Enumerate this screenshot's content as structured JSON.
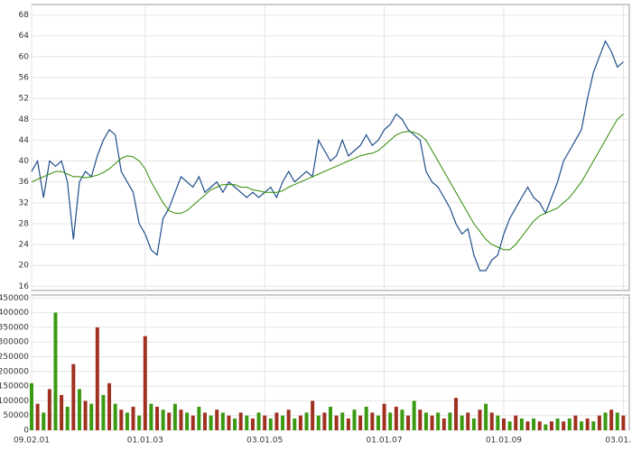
{
  "chart_data": [
    {
      "type": "line",
      "xlim": [
        2001.1,
        2011.1
      ],
      "ylim": [
        15.2,
        70
      ],
      "yticks": [
        16,
        20,
        24,
        28,
        32,
        36,
        40,
        44,
        48,
        52,
        56,
        60,
        64,
        68
      ],
      "grid": true,
      "x": [
        2001.1,
        2001.2,
        2001.3,
        2001.4,
        2001.5,
        2001.6,
        2001.7,
        2001.8,
        2001.9,
        2002.0,
        2002.1,
        2002.2,
        2002.3,
        2002.4,
        2002.5,
        2002.6,
        2002.7,
        2002.8,
        2002.9,
        2003.0,
        2003.1,
        2003.2,
        2003.3,
        2003.4,
        2003.5,
        2003.6,
        2003.7,
        2003.8,
        2003.9,
        2004.0,
        2004.1,
        2004.2,
        2004.3,
        2004.4,
        2004.5,
        2004.6,
        2004.7,
        2004.8,
        2004.9,
        2005.0,
        2005.1,
        2005.2,
        2005.3,
        2005.4,
        2005.5,
        2005.6,
        2005.7,
        2005.8,
        2005.9,
        2006.0,
        2006.1,
        2006.2,
        2006.3,
        2006.4,
        2006.5,
        2006.6,
        2006.7,
        2006.8,
        2006.9,
        2007.0,
        2007.1,
        2007.2,
        2007.3,
        2007.4,
        2007.5,
        2007.6,
        2007.7,
        2007.8,
        2007.9,
        2008.0,
        2008.1,
        2008.2,
        2008.3,
        2008.4,
        2008.5,
        2008.6,
        2008.7,
        2008.8,
        2008.9,
        2009.0,
        2009.1,
        2009.2,
        2009.3,
        2009.4,
        2009.5,
        2009.6,
        2009.7,
        2009.8,
        2009.9,
        2010.0,
        2010.1,
        2010.2,
        2010.3,
        2010.4,
        2010.5,
        2010.6,
        2010.7,
        2010.8,
        2010.9,
        2011.0
      ],
      "series": [
        {
          "color": "#1f4e8c",
          "values": [
            38,
            40,
            33,
            40,
            39,
            40,
            36,
            25,
            36,
            38,
            37,
            41,
            44,
            46,
            45,
            38,
            36,
            34,
            28,
            26,
            23,
            22,
            29,
            31,
            34,
            37,
            36,
            35,
            37,
            34,
            35,
            36,
            34,
            36,
            35,
            34,
            33,
            34,
            33,
            34,
            35,
            33,
            36,
            38,
            36,
            37,
            38,
            37,
            44,
            42,
            40,
            41,
            44,
            41,
            42,
            43,
            45,
            43,
            44,
            46,
            47,
            49,
            48,
            46,
            45,
            44,
            38,
            36,
            35,
            33,
            31,
            28,
            26,
            27,
            22,
            19,
            19,
            21,
            22,
            26,
            29,
            31,
            33,
            35,
            33,
            32,
            30,
            33,
            36,
            40,
            42,
            44,
            46,
            52,
            57,
            60,
            63,
            61,
            58,
            59
          ]
        },
        {
          "color": "#2e8b00",
          "values": [
            36,
            36.5,
            37,
            37.5,
            38,
            38,
            37.5,
            37,
            37,
            36.8,
            37,
            37.3,
            37.8,
            38.5,
            39.5,
            40.5,
            41,
            40.8,
            40,
            38.5,
            36,
            34,
            32,
            30.5,
            30,
            30,
            30.5,
            31.5,
            32.5,
            33.5,
            34.5,
            35,
            35.5,
            35.5,
            35.5,
            35,
            35,
            34.5,
            34.3,
            34,
            34,
            34,
            34.3,
            35,
            35.5,
            36,
            36.5,
            37,
            37.5,
            38,
            38.5,
            39,
            39.5,
            40,
            40.5,
            41,
            41.3,
            41.5,
            42,
            43,
            44,
            45,
            45.5,
            45.7,
            45.5,
            45,
            44,
            42,
            40,
            38,
            36,
            34,
            32,
            30,
            28,
            26.5,
            25,
            24,
            23.5,
            23,
            23,
            24,
            25.5,
            27,
            28.5,
            29.5,
            30,
            30.5,
            31,
            32,
            33,
            34.5,
            36,
            38,
            40,
            42,
            44,
            46,
            48,
            49
          ]
        }
      ]
    },
    {
      "type": "bar",
      "xlim": [
        2001.1,
        2011.1
      ],
      "ylim": [
        0,
        460000
      ],
      "yticks": [
        0,
        50000,
        100000,
        150000,
        200000,
        250000,
        300000,
        350000,
        400000,
        450000
      ],
      "xticks": [
        {
          "value": 2001.1,
          "label": "09.02.01"
        },
        {
          "value": 2003.0,
          "label": "01.01.03"
        },
        {
          "value": 2005.0,
          "label": "03.01.05"
        },
        {
          "value": 2007.0,
          "label": "01.01.07"
        },
        {
          "value": 2009.0,
          "label": "01.01.09"
        },
        {
          "value": 2011.0,
          "label": "03.01.11"
        }
      ],
      "grid": true,
      "colors": [
        "#3a9a10",
        "#a03020"
      ],
      "x": [
        2001.1,
        2001.2,
        2001.3,
        2001.4,
        2001.5,
        2001.6,
        2001.7,
        2001.8,
        2001.9,
        2002.0,
        2002.1,
        2002.2,
        2002.3,
        2002.4,
        2002.5,
        2002.6,
        2002.7,
        2002.8,
        2002.9,
        2003.0,
        2003.1,
        2003.2,
        2003.3,
        2003.4,
        2003.5,
        2003.6,
        2003.7,
        2003.8,
        2003.9,
        2004.0,
        2004.1,
        2004.2,
        2004.3,
        2004.4,
        2004.5,
        2004.6,
        2004.7,
        2004.8,
        2004.9,
        2005.0,
        2005.1,
        2005.2,
        2005.3,
        2005.4,
        2005.5,
        2005.6,
        2005.7,
        2005.8,
        2005.9,
        2006.0,
        2006.1,
        2006.2,
        2006.3,
        2006.4,
        2006.5,
        2006.6,
        2006.7,
        2006.8,
        2006.9,
        2007.0,
        2007.1,
        2007.2,
        2007.3,
        2007.4,
        2007.5,
        2007.6,
        2007.7,
        2007.8,
        2007.9,
        2008.0,
        2008.1,
        2008.2,
        2008.3,
        2008.4,
        2008.5,
        2008.6,
        2008.7,
        2008.8,
        2008.9,
        2009.0,
        2009.1,
        2009.2,
        2009.3,
        2009.4,
        2009.5,
        2009.6,
        2009.7,
        2009.8,
        2009.9,
        2010.0,
        2010.1,
        2010.2,
        2010.3,
        2010.4,
        2010.5,
        2010.6,
        2010.7,
        2010.8,
        2010.9,
        2011.0
      ],
      "values": [
        160000,
        90000,
        60000,
        140000,
        400000,
        120000,
        80000,
        225000,
        140000,
        100000,
        90000,
        350000,
        120000,
        160000,
        90000,
        70000,
        60000,
        80000,
        50000,
        320000,
        90000,
        80000,
        70000,
        60000,
        90000,
        70000,
        60000,
        50000,
        80000,
        60000,
        50000,
        70000,
        60000,
        50000,
        40000,
        60000,
        50000,
        40000,
        60000,
        50000,
        40000,
        60000,
        50000,
        70000,
        40000,
        50000,
        60000,
        100000,
        50000,
        60000,
        80000,
        50000,
        60000,
        40000,
        70000,
        50000,
        80000,
        60000,
        50000,
        90000,
        60000,
        80000,
        70000,
        50000,
        100000,
        70000,
        60000,
        50000,
        60000,
        40000,
        60000,
        110000,
        50000,
        60000,
        40000,
        70000,
        90000,
        60000,
        50000,
        40000,
        30000,
        50000,
        40000,
        30000,
        40000,
        30000,
        20000,
        30000,
        40000,
        30000,
        40000,
        50000,
        30000,
        40000,
        30000,
        50000,
        60000,
        70000,
        60000,
        50000
      ]
    }
  ]
}
